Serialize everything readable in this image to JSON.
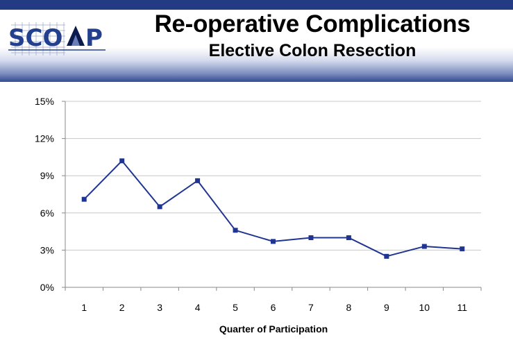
{
  "header": {
    "logo_text": "SCOAP",
    "title": "Re-operative Complications",
    "subtitle": "Elective Colon Resection",
    "colors": {
      "bar": "#233a84",
      "logo_blue": "#23408f"
    }
  },
  "chart_data": {
    "type": "line",
    "title": "",
    "xlabel": "Quarter of Participation",
    "ylabel": "",
    "categories": [
      "1",
      "2",
      "3",
      "4",
      "5",
      "6",
      "7",
      "8",
      "9",
      "10",
      "11"
    ],
    "series": [
      {
        "values": [
          7.1,
          10.2,
          6.5,
          8.6,
          4.6,
          3.7,
          4.0,
          4.0,
          2.5,
          3.3,
          3.1
        ],
        "color": "#1f3591"
      }
    ],
    "ylim": [
      0,
      15
    ],
    "yticks": [
      {
        "value": 0,
        "label": "0%"
      },
      {
        "value": 3,
        "label": "3%"
      },
      {
        "value": 6,
        "label": "6%"
      },
      {
        "value": 9,
        "label": "9%"
      },
      {
        "value": 12,
        "label": "12%"
      },
      {
        "value": 15,
        "label": "15%"
      }
    ],
    "grid": true,
    "marker": "square",
    "legend": "none"
  }
}
